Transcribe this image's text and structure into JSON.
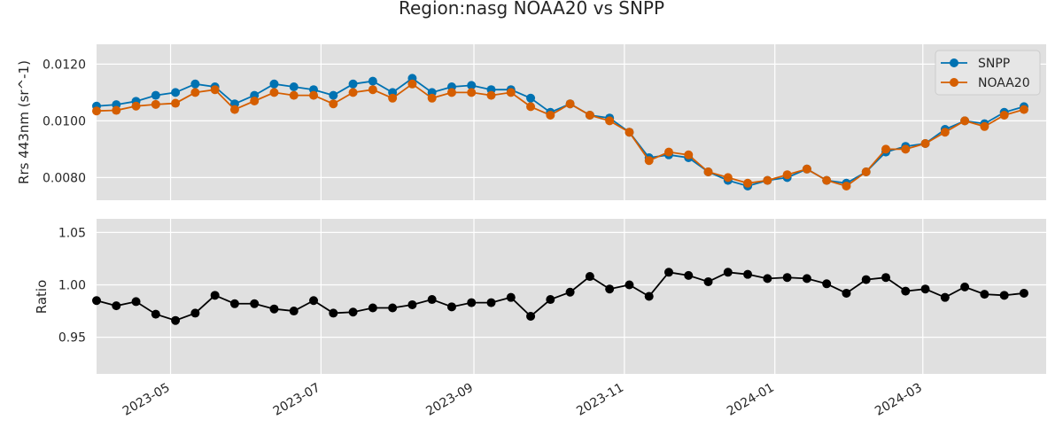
{
  "chart_data": {
    "type": "line",
    "title": "Region:nasg NOAA20 vs SNPP",
    "x": [
      "2023-04-01",
      "2023-04-09",
      "2023-04-17",
      "2023-04-25",
      "2023-05-03",
      "2023-05-11",
      "2023-05-19",
      "2023-05-27",
      "2023-06-04",
      "2023-06-12",
      "2023-06-20",
      "2023-06-28",
      "2023-07-06",
      "2023-07-14",
      "2023-07-22",
      "2023-07-30",
      "2023-08-07",
      "2023-08-15",
      "2023-08-23",
      "2023-08-31",
      "2023-09-08",
      "2023-09-16",
      "2023-09-24",
      "2023-10-02",
      "2023-10-10",
      "2023-10-18",
      "2023-10-26",
      "2023-11-03",
      "2023-11-11",
      "2023-11-19",
      "2023-11-27",
      "2023-12-05",
      "2023-12-13",
      "2023-12-21",
      "2023-12-29",
      "2024-01-06",
      "2024-01-14",
      "2024-01-22",
      "2024-01-30",
      "2024-02-07",
      "2024-02-15",
      "2024-02-23",
      "2024-03-02",
      "2024-03-10",
      "2024-03-18",
      "2024-03-26",
      "2024-04-03",
      "2024-04-11"
    ],
    "series": [
      {
        "name": "SNPP",
        "color": "#0072b2",
        "values": [
          0.01052,
          0.01057,
          0.01069,
          0.0109,
          0.011,
          0.0113,
          0.0112,
          0.0106,
          0.0109,
          0.0113,
          0.0112,
          0.0111,
          0.0109,
          0.0113,
          0.0114,
          0.011,
          0.0115,
          0.011,
          0.0112,
          0.01125,
          0.0111,
          0.0111,
          0.0108,
          0.0103,
          0.0106,
          0.0102,
          0.0101,
          0.0096,
          0.0087,
          0.0088,
          0.0087,
          0.0082,
          0.0079,
          0.0077,
          0.0079,
          0.008,
          0.0083,
          0.0079,
          0.0078,
          0.0082,
          0.0089,
          0.0091,
          0.0092,
          0.0097,
          0.01,
          0.0099,
          0.0103,
          0.0105
        ]
      },
      {
        "name": "NOAA20",
        "color": "#d55e00",
        "values": [
          0.01035,
          0.01037,
          0.01052,
          0.01058,
          0.01062,
          0.011,
          0.0111,
          0.0104,
          0.0107,
          0.011,
          0.0109,
          0.0109,
          0.0106,
          0.011,
          0.0111,
          0.0108,
          0.0113,
          0.0108,
          0.011,
          0.011,
          0.0109,
          0.011,
          0.0105,
          0.0102,
          0.0106,
          0.0102,
          0.01,
          0.0096,
          0.0086,
          0.0089,
          0.0088,
          0.0082,
          0.008,
          0.0078,
          0.0079,
          0.0081,
          0.0083,
          0.0079,
          0.0077,
          0.0082,
          0.009,
          0.009,
          0.0092,
          0.0096,
          0.01,
          0.0098,
          0.0102,
          0.0104
        ]
      }
    ],
    "ylabel": "Rrs 443nm (sr^-1)",
    "ylim": [
      0.0072,
      0.0127
    ],
    "yticks": [
      0.008,
      0.01,
      0.012
    ],
    "ytick_labels": [
      "0.0080",
      "0.0100",
      "0.0120"
    ],
    "legend": "top-right",
    "grid": true,
    "ratio": {
      "ylabel": "Ratio",
      "ylim": [
        0.915,
        1.063
      ],
      "yticks": [
        0.95,
        1.0,
        1.05
      ],
      "ytick_labels": [
        "0.95",
        "1.00",
        "1.05"
      ],
      "color": "#000000",
      "values": [
        0.985,
        0.98,
        0.984,
        0.972,
        0.966,
        0.973,
        0.99,
        0.982,
        0.982,
        0.977,
        0.975,
        0.985,
        0.973,
        0.974,
        0.978,
        0.978,
        0.981,
        0.986,
        0.979,
        0.983,
        0.983,
        0.988,
        0.97,
        0.986,
        0.993,
        1.008,
        0.996,
        1.0,
        0.989,
        1.012,
        1.009,
        1.003,
        1.012,
        1.01,
        1.006,
        1.007,
        1.006,
        1.001,
        0.992,
        1.005,
        1.007,
        0.994,
        0.996,
        0.988,
        0.998,
        0.991,
        0.99,
        0.992
      ]
    },
    "xlim": [
      "2023-04-01",
      "2024-04-20"
    ],
    "xticks": [
      "2023-05-01",
      "2023-07-01",
      "2023-09-01",
      "2023-11-01",
      "2024-01-01",
      "2024-03-01"
    ],
    "xtick_labels": [
      "2023-05",
      "2023-07",
      "2023-09",
      "2023-11",
      "2024-01",
      "2024-03"
    ]
  }
}
